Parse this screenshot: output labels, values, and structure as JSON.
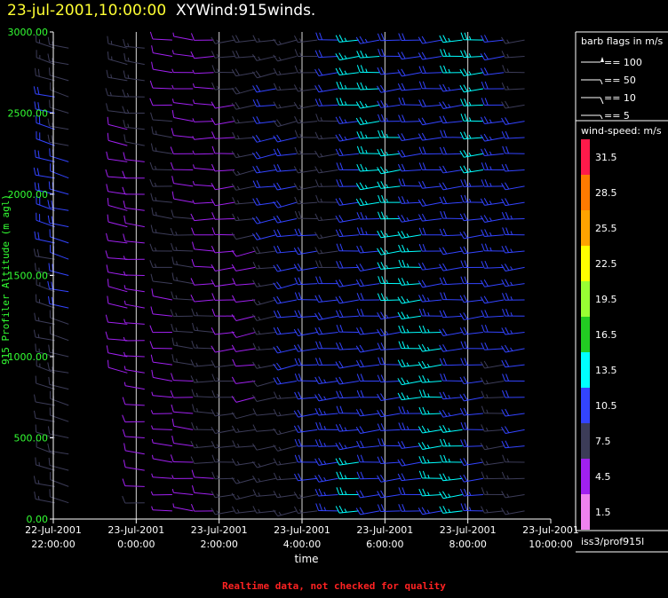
{
  "title": {
    "datetime": "23-jul-2001,10:00:00",
    "product": "XYWind:915winds."
  },
  "colors": {
    "axis": "#ffffff",
    "ylabel": "#33ff33",
    "title_date": "#ffff33",
    "note": "#ff2222"
  },
  "legend": {
    "barb_header": "barb flags in m/s",
    "barbs": [
      {
        "label": "== 100",
        "kind": "pennant"
      },
      {
        "label": "== 50",
        "kind": "flag"
      },
      {
        "label": "== 10",
        "kind": "full"
      },
      {
        "label": "== 5",
        "kind": "half"
      }
    ],
    "speed_header": "wind-speed: m/s",
    "scale": [
      {
        "value": "31.5",
        "color": "#ff1a4a"
      },
      {
        "value": "28.5",
        "color": "#ff7a00"
      },
      {
        "value": "25.5",
        "color": "#ffa300"
      },
      {
        "value": "22.5",
        "color": "#ffff00"
      },
      {
        "value": "19.5",
        "color": "#99ff33"
      },
      {
        "value": "16.5",
        "color": "#22cc22"
      },
      {
        "value": "13.5",
        "color": "#00ffff"
      },
      {
        "value": "10.5",
        "color": "#3344ff"
      },
      {
        "value": "7.5",
        "color": "#3c3c58"
      },
      {
        "value": "4.5",
        "color": "#a020f0"
      },
      {
        "value": "1.5",
        "color": "#ee82ee"
      }
    ],
    "station": "iss3/prof915l"
  },
  "chart_data": {
    "type": "scatter",
    "marker": "wind-barb",
    "ylabel": "915 Profiler Altitude (m agl)",
    "xlabel": "time",
    "ylim": [
      0,
      3000
    ],
    "xlim": [
      "2001-07-22 22:00",
      "2001-07-23 10:00"
    ],
    "y_ticks": [
      "0.00",
      "500.00",
      "1000.00",
      "1500.00",
      "2000.00",
      "2500.00",
      "3000.00"
    ],
    "x_ticks": [
      {
        "date": "22-Jul-2001",
        "time": "22:00:00"
      },
      {
        "date": "23-Jul-2001",
        "time": "0:00:00"
      },
      {
        "date": "23-Jul-2001",
        "time": "2:00:00"
      },
      {
        "date": "23-Jul-2001",
        "time": "4:00:00"
      },
      {
        "date": "23-Jul-2001",
        "time": "6:00:00"
      },
      {
        "date": "23-Jul-2001",
        "time": "8:00:00"
      },
      {
        "date": "23-Jul-2001",
        "time": "10:00:00"
      }
    ],
    "columns": [
      {
        "time": "2001-07-22 22:15",
        "bottom": 100,
        "top": 2950,
        "dir": 285,
        "spd": 8
      },
      {
        "time": "2001-07-22 22:35",
        "bottom": 100,
        "top": 2950,
        "dir": 285,
        "spd": 8
      },
      {
        "time": "2001-07-23 00:00",
        "bottom": 900,
        "top": 2950,
        "dir": 280,
        "spd": 6
      },
      {
        "time": "2001-07-23 00:25",
        "bottom": 100,
        "top": 2950,
        "dir": 275,
        "spd": 5
      },
      {
        "time": "2001-07-23 01:05",
        "bottom": 50,
        "top": 2950,
        "dir": 275,
        "spd": 5
      },
      {
        "time": "2001-07-23 01:35",
        "bottom": 50,
        "top": 2950,
        "dir": 275,
        "spd": 5
      },
      {
        "time": "2001-07-23 02:05",
        "bottom": 50,
        "top": 2950,
        "dir": 270,
        "spd": 5
      },
      {
        "time": "2001-07-23 02:35",
        "bottom": 50,
        "top": 2950,
        "dir": 265,
        "spd": 6
      },
      {
        "time": "2001-07-23 03:05",
        "bottom": 50,
        "top": 2950,
        "dir": 260,
        "spd": 7
      },
      {
        "time": "2001-07-23 03:35",
        "bottom": 50,
        "top": 2950,
        "dir": 260,
        "spd": 8
      },
      {
        "time": "2001-07-23 04:05",
        "bottom": 50,
        "top": 2950,
        "dir": 260,
        "spd": 9
      },
      {
        "time": "2001-07-23 04:35",
        "bottom": 50,
        "top": 2950,
        "dir": 265,
        "spd": 9
      },
      {
        "time": "2001-07-23 05:05",
        "bottom": 50,
        "top": 2950,
        "dir": 265,
        "spd": 10
      },
      {
        "time": "2001-07-23 05:35",
        "bottom": 50,
        "top": 2950,
        "dir": 265,
        "spd": 11
      },
      {
        "time": "2001-07-23 06:05",
        "bottom": 50,
        "top": 2950,
        "dir": 265,
        "spd": 11
      },
      {
        "time": "2001-07-23 06:35",
        "bottom": 50,
        "top": 2950,
        "dir": 265,
        "spd": 11
      },
      {
        "time": "2001-07-23 07:05",
        "bottom": 50,
        "top": 2950,
        "dir": 265,
        "spd": 11
      },
      {
        "time": "2001-07-23 07:35",
        "bottom": 50,
        "top": 2950,
        "dir": 265,
        "spd": 11
      },
      {
        "time": "2001-07-23 08:05",
        "bottom": 50,
        "top": 2950,
        "dir": 265,
        "spd": 11
      },
      {
        "time": "2001-07-23 08:35",
        "bottom": 50,
        "top": 2950,
        "dir": 265,
        "spd": 11
      },
      {
        "time": "2001-07-23 09:05",
        "bottom": 50,
        "top": 2950,
        "dir": 265,
        "spd": 10
      },
      {
        "time": "2001-07-23 09:35",
        "bottom": 50,
        "top": 2950,
        "dir": 265,
        "spd": 10
      }
    ],
    "gate_spacing_m": 100
  },
  "note": "Realtime data, not checked for quality"
}
